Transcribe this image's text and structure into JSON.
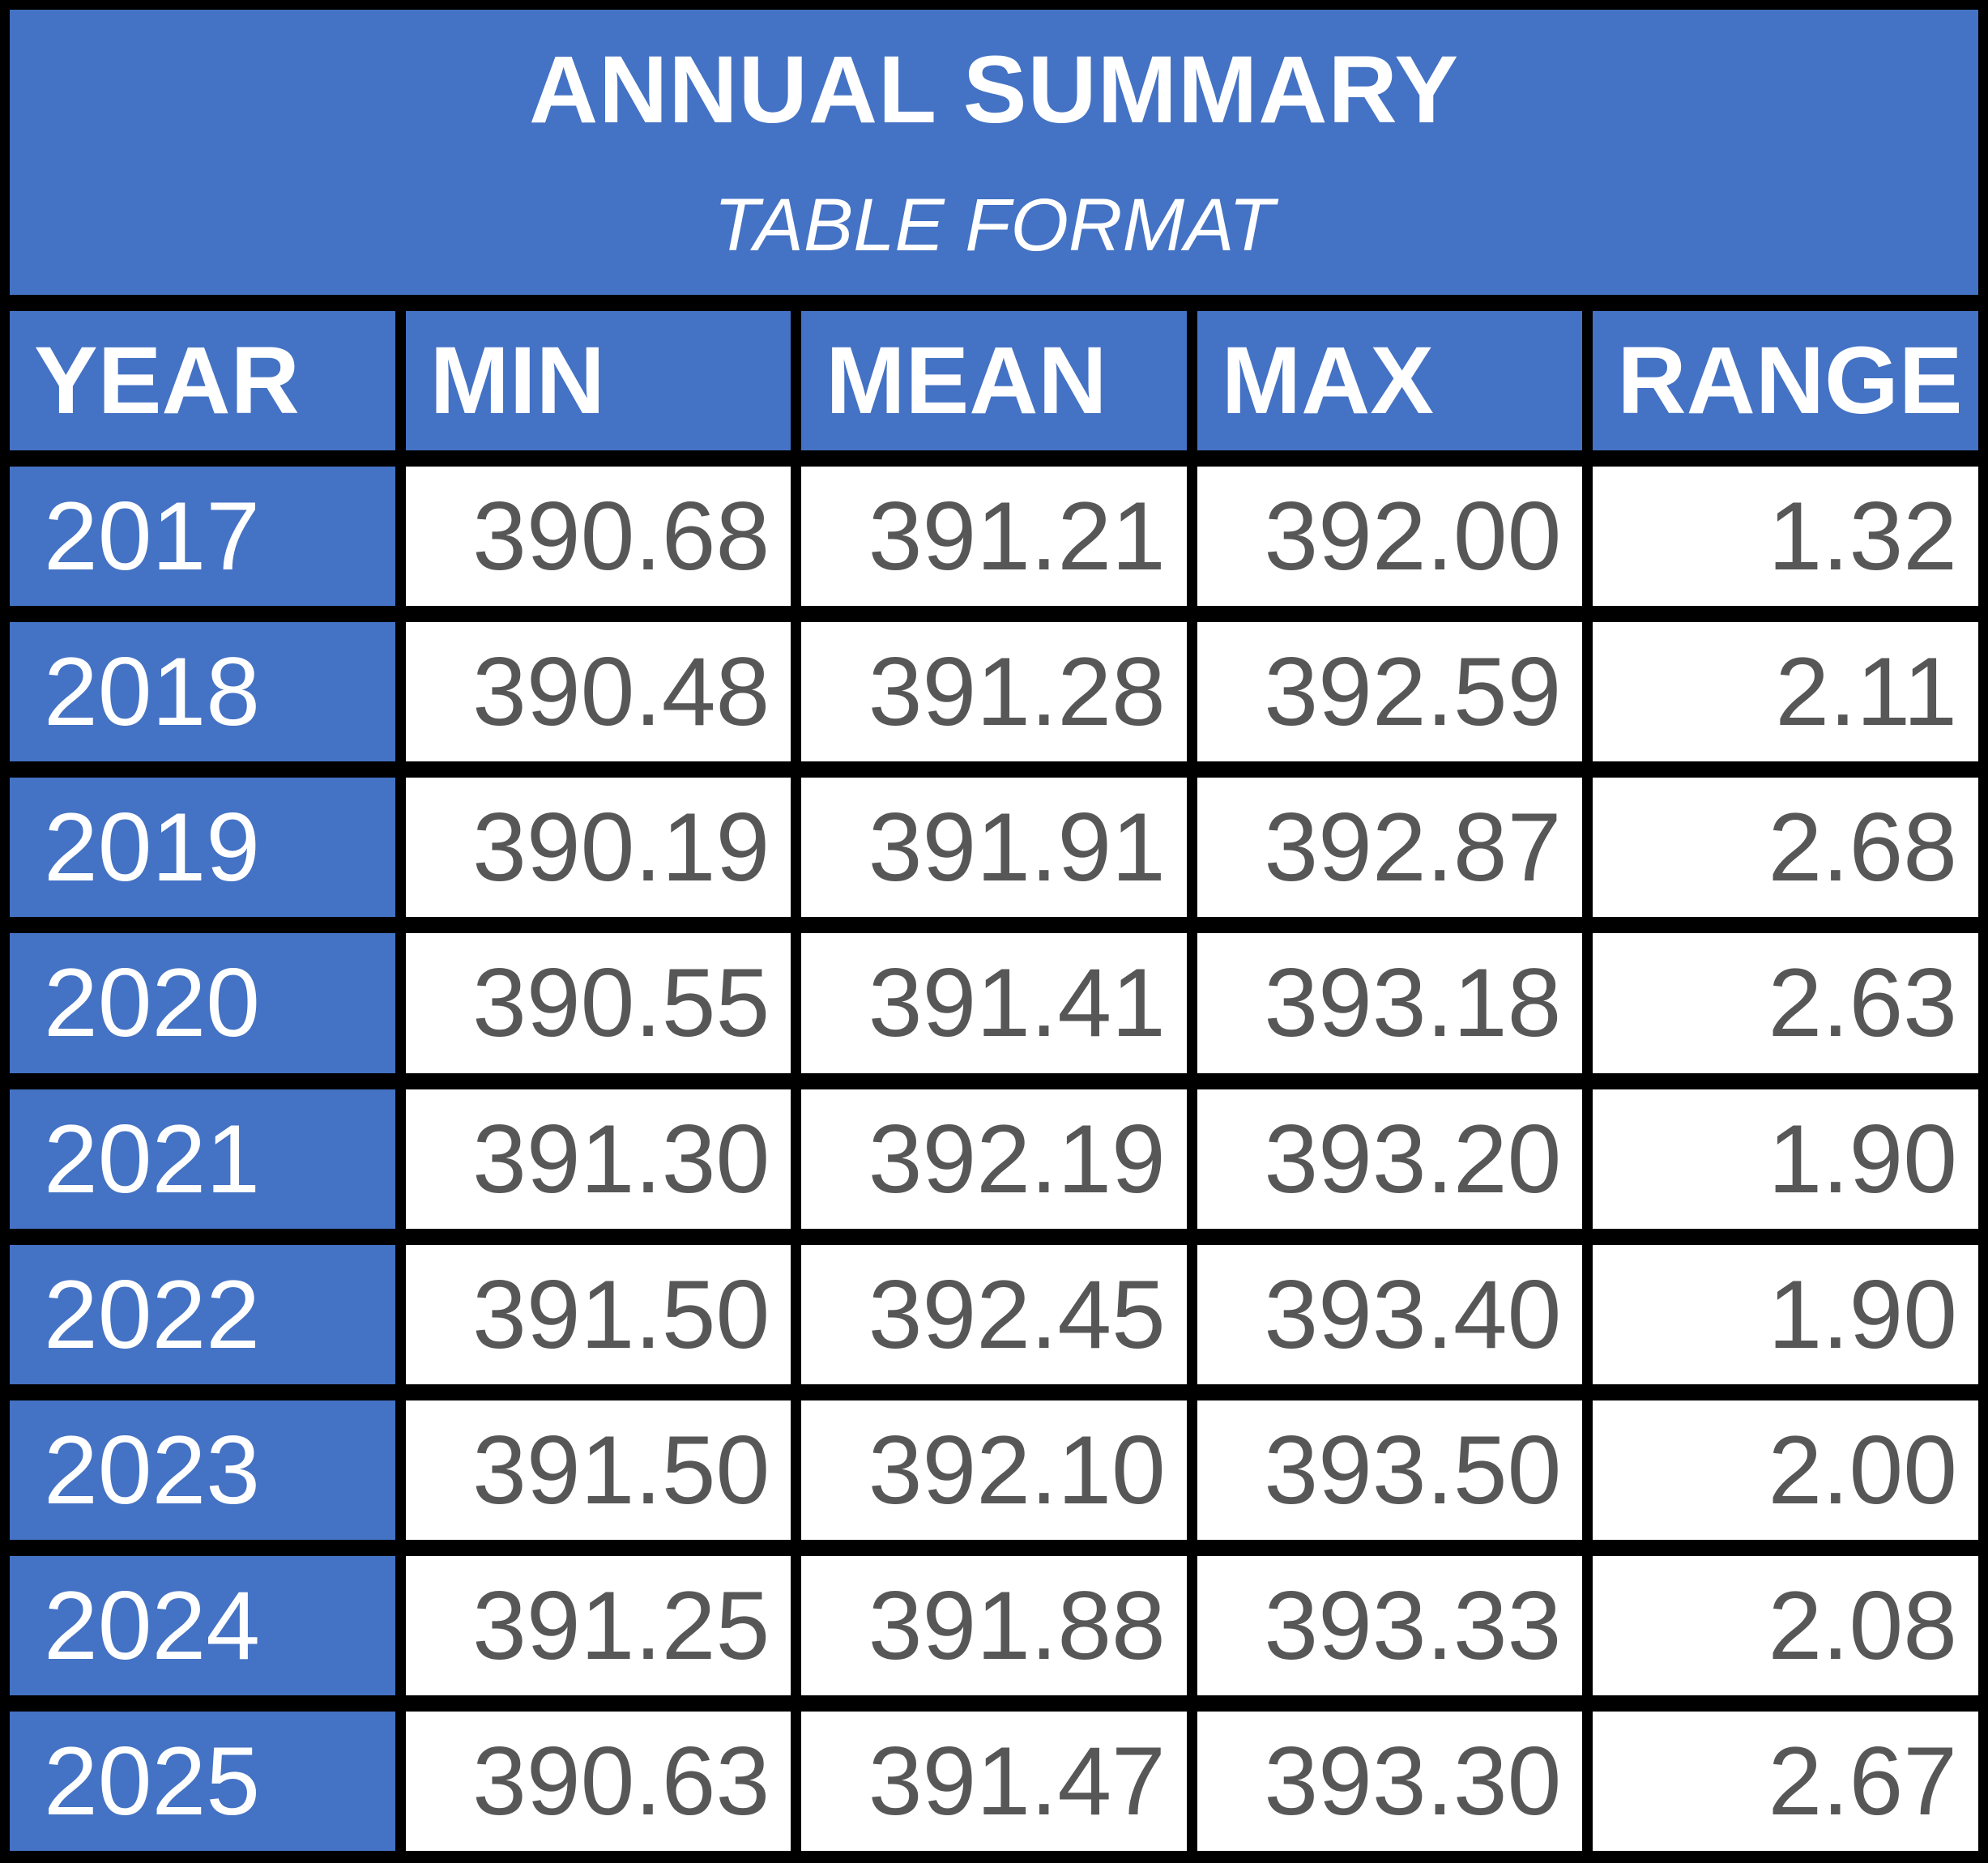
{
  "title": "ANNUAL SUMMARY",
  "subtitle": "TABLE FORMAT",
  "colors": {
    "header_blue": "#4472C4",
    "border_black": "#000000",
    "cell_white": "#FFFFFF",
    "value_text_gray": "#575757",
    "header_text_white": "#FFFFFF"
  },
  "chart_data": {
    "type": "table",
    "title": "ANNUAL SUMMARY",
    "subtitle": "TABLE FORMAT",
    "columns": [
      "YEAR",
      "MIN",
      "MEAN",
      "MAX",
      "RANGE"
    ],
    "rows": [
      {
        "year": "2017",
        "min": "390.68",
        "mean": "391.21",
        "max": "392.00",
        "range": "1.32"
      },
      {
        "year": "2018",
        "min": "390.48",
        "mean": "391.28",
        "max": "392.59",
        "range": "2.11"
      },
      {
        "year": "2019",
        "min": "390.19",
        "mean": "391.91",
        "max": "392.87",
        "range": "2.68"
      },
      {
        "year": "2020",
        "min": "390.55",
        "mean": "391.41",
        "max": "393.18",
        "range": "2.63"
      },
      {
        "year": "2021",
        "min": "391.30",
        "mean": "392.19",
        "max": "393.20",
        "range": "1.90"
      },
      {
        "year": "2022",
        "min": "391.50",
        "mean": "392.45",
        "max": "393.40",
        "range": "1.90"
      },
      {
        "year": "2023",
        "min": "391.50",
        "mean": "392.10",
        "max": "393.50",
        "range": "2.00"
      },
      {
        "year": "2024",
        "min": "391.25",
        "mean": "391.88",
        "max": "393.33",
        "range": "2.08"
      },
      {
        "year": "2025",
        "min": "390.63",
        "mean": "391.47",
        "max": "393.30",
        "range": "2.67"
      }
    ]
  }
}
